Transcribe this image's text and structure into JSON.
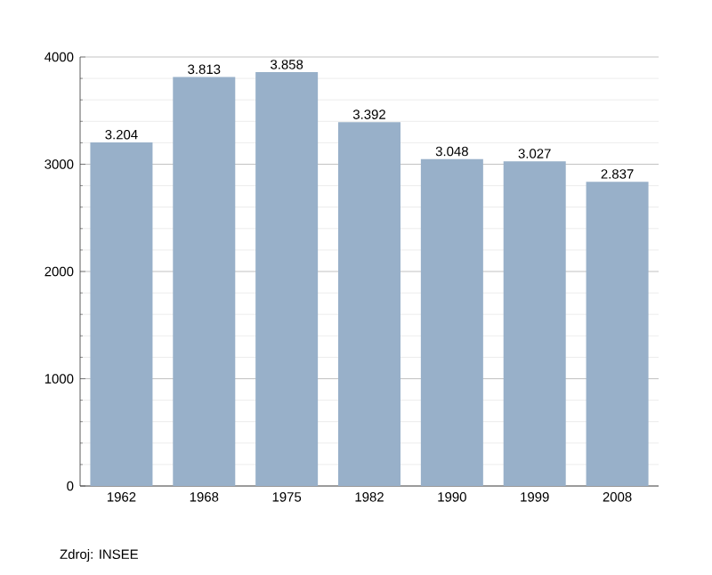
{
  "chart_data": {
    "type": "bar",
    "categories": [
      "1962",
      "1968",
      "1975",
      "1982",
      "1990",
      "1999",
      "2008"
    ],
    "values": [
      3204,
      3813,
      3858,
      3392,
      3048,
      3027,
      2837
    ],
    "value_labels": [
      "3.204",
      "3.813",
      "3.858",
      "3.392",
      "3.048",
      "3.027",
      "2.837"
    ],
    "color": "#98b0c9",
    "ylim": [
      0,
      4000
    ],
    "yticks": [
      0,
      1000,
      2000,
      3000,
      4000
    ],
    "grid": "y",
    "annotations": [
      "Zdroj: INSEE"
    ]
  }
}
